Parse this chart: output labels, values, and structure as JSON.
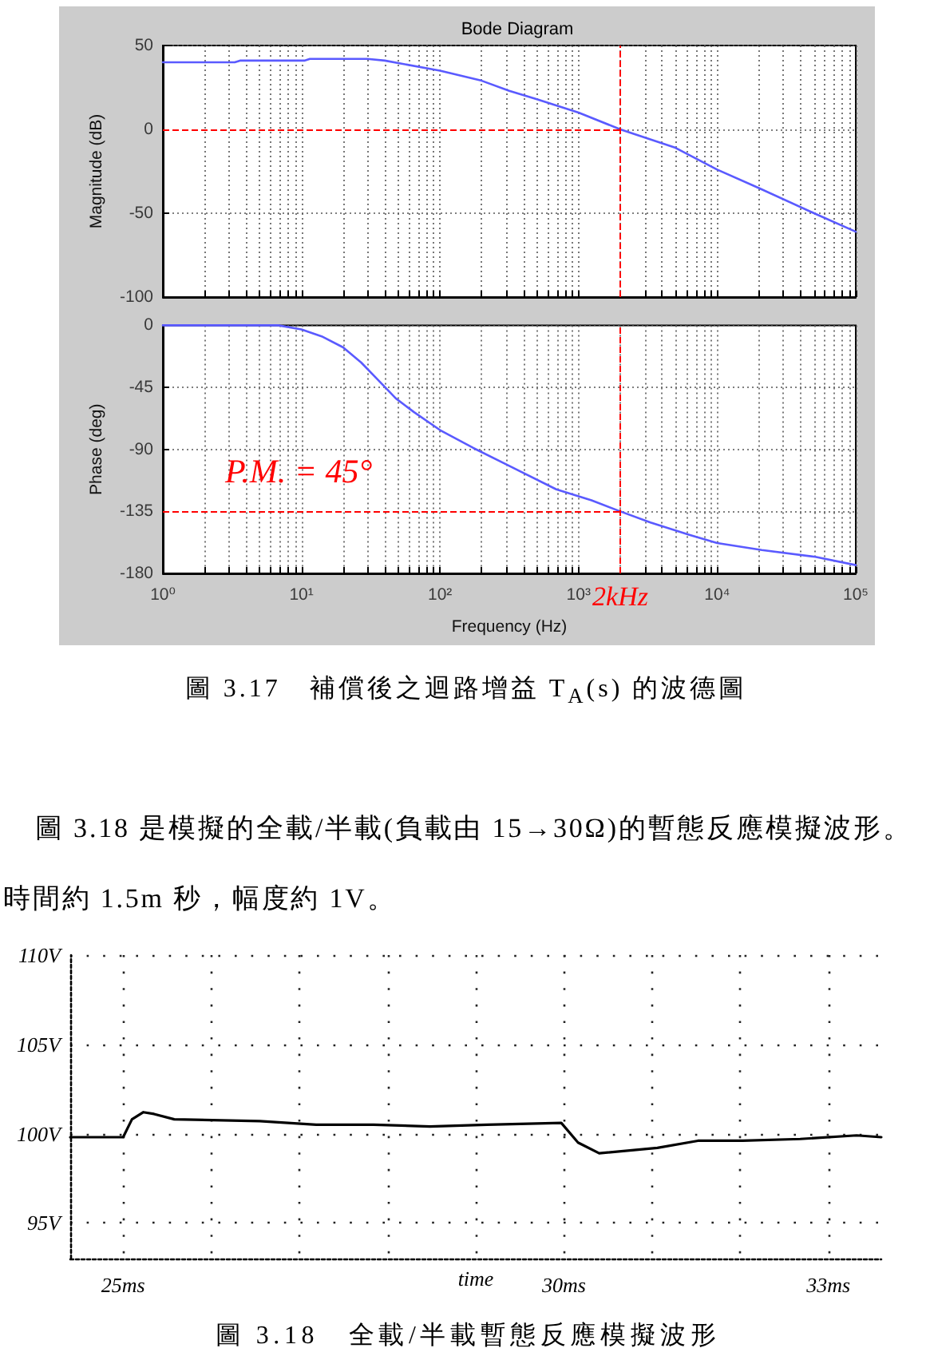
{
  "chart_data": [
    {
      "type": "line",
      "title": "Bode Diagram",
      "ylabel": "Magnitude (dB)",
      "x": [
        1,
        3.3,
        3.6,
        10.5,
        11.5,
        30,
        40,
        100,
        200,
        316,
        500,
        1000,
        2000,
        5000,
        10000,
        20000,
        50000,
        100000
      ],
      "values": [
        40,
        40,
        41,
        41,
        42,
        42,
        41,
        35,
        29,
        23,
        18,
        10,
        0,
        -11,
        -24,
        -35,
        -50,
        -61
      ],
      "color": "#5a5aff",
      "log": "x",
      "xlim": [
        1,
        100000
      ],
      "xticks": [
        {
          "value": 1,
          "label": null
        },
        {
          "value": 2,
          "label": null
        },
        {
          "value": 3,
          "label": null
        },
        {
          "value": 4,
          "label": null
        },
        {
          "value": 5,
          "label": null
        },
        {
          "value": 6,
          "label": null
        },
        {
          "value": 7,
          "label": null
        },
        {
          "value": 8,
          "label": null
        },
        {
          "value": 9,
          "label": null
        },
        {
          "value": 10,
          "label": null
        },
        {
          "value": 20,
          "label": null
        },
        {
          "value": 30,
          "label": null
        },
        {
          "value": 40,
          "label": null
        },
        {
          "value": 50,
          "label": null
        },
        {
          "value": 60,
          "label": null
        },
        {
          "value": 70,
          "label": null
        },
        {
          "value": 80,
          "label": null
        },
        {
          "value": 90,
          "label": null
        },
        {
          "value": 100,
          "label": null
        },
        {
          "value": 200,
          "label": null
        },
        {
          "value": 300,
          "label": null
        },
        {
          "value": 400,
          "label": null
        },
        {
          "value": 500,
          "label": null
        },
        {
          "value": 600,
          "label": null
        },
        {
          "value": 700,
          "label": null
        },
        {
          "value": 800,
          "label": null
        },
        {
          "value": 900,
          "label": null
        },
        {
          "value": 1000,
          "label": null
        },
        {
          "value": 2000,
          "label": null
        },
        {
          "value": 3000,
          "label": null
        },
        {
          "value": 4000,
          "label": null
        },
        {
          "value": 5000,
          "label": null
        },
        {
          "value": 6000,
          "label": null
        },
        {
          "value": 7000,
          "label": null
        },
        {
          "value": 8000,
          "label": null
        },
        {
          "value": 9000,
          "label": null
        },
        {
          "value": 10000,
          "label": null
        },
        {
          "value": 20000,
          "label": null
        },
        {
          "value": 30000,
          "label": null
        },
        {
          "value": 40000,
          "label": null
        },
        {
          "value": 50000,
          "label": null
        },
        {
          "value": 60000,
          "label": null
        },
        {
          "value": 70000,
          "label": null
        },
        {
          "value": 80000,
          "label": null
        },
        {
          "value": 90000,
          "label": null
        },
        {
          "value": 100000,
          "label": null
        }
      ],
      "ylim": [
        -100,
        50
      ],
      "yticks": [
        -100,
        -50,
        0,
        50
      ],
      "grid": true,
      "tick_labels": "y",
      "ref_lines": [
        {
          "axis": "y",
          "value": 0,
          "color": "#ff0000",
          "line_style": "dashed"
        },
        {
          "axis": "x",
          "value": 2000,
          "color": "#ff0000",
          "line_style": "dashed"
        }
      ]
    },
    {
      "type": "line",
      "xlabel": "Frequency (Hz)",
      "ylabel": "Phase (deg)",
      "x": [
        1,
        6.8,
        10,
        14,
        20,
        27,
        36,
        48,
        65,
        100,
        174,
        316,
        690,
        1240,
        2000,
        3300,
        6300,
        10000,
        21000,
        51000,
        100000
      ],
      "values": [
        0,
        0,
        -3,
        -8,
        -16,
        -27,
        -40,
        -53,
        -63,
        -76,
        -89,
        -102,
        -119,
        -127,
        -135,
        -143,
        -152,
        -158,
        -163,
        -168,
        -174
      ],
      "color": "#5a5aff",
      "log": "x",
      "xlim": [
        1,
        100000
      ],
      "xticks": [
        {
          "value": 1,
          "label": "10⁰"
        },
        {
          "value": 2,
          "label": null
        },
        {
          "value": 3,
          "label": null
        },
        {
          "value": 4,
          "label": null
        },
        {
          "value": 5,
          "label": null
        },
        {
          "value": 6,
          "label": null
        },
        {
          "value": 7,
          "label": null
        },
        {
          "value": 8,
          "label": null
        },
        {
          "value": 9,
          "label": null
        },
        {
          "value": 10,
          "label": "10¹"
        },
        {
          "value": 20,
          "label": null
        },
        {
          "value": 30,
          "label": null
        },
        {
          "value": 40,
          "label": null
        },
        {
          "value": 50,
          "label": null
        },
        {
          "value": 60,
          "label": null
        },
        {
          "value": 70,
          "label": null
        },
        {
          "value": 80,
          "label": null
        },
        {
          "value": 90,
          "label": null
        },
        {
          "value": 100,
          "label": "10²"
        },
        {
          "value": 200,
          "label": null
        },
        {
          "value": 300,
          "label": null
        },
        {
          "value": 400,
          "label": null
        },
        {
          "value": 500,
          "label": null
        },
        {
          "value": 600,
          "label": null
        },
        {
          "value": 700,
          "label": null
        },
        {
          "value": 800,
          "label": null
        },
        {
          "value": 900,
          "label": null
        },
        {
          "value": 1000,
          "label": "10³"
        },
        {
          "value": 2000,
          "label": null
        },
        {
          "value": 3000,
          "label": null
        },
        {
          "value": 4000,
          "label": null
        },
        {
          "value": 5000,
          "label": null
        },
        {
          "value": 6000,
          "label": null
        },
        {
          "value": 7000,
          "label": null
        },
        {
          "value": 8000,
          "label": null
        },
        {
          "value": 9000,
          "label": null
        },
        {
          "value": 10000,
          "label": "10⁴"
        },
        {
          "value": 20000,
          "label": null
        },
        {
          "value": 30000,
          "label": null
        },
        {
          "value": 40000,
          "label": null
        },
        {
          "value": 50000,
          "label": null
        },
        {
          "value": 60000,
          "label": null
        },
        {
          "value": 70000,
          "label": null
        },
        {
          "value": 80000,
          "label": null
        },
        {
          "value": 90000,
          "label": null
        },
        {
          "value": 100000,
          "label": "10⁵"
        }
      ],
      "ylim": [
        -180,
        0
      ],
      "yticks": [
        -180,
        -135,
        -90,
        -45,
        0
      ],
      "grid": true,
      "ref_lines": [
        {
          "axis": "y",
          "value": -135,
          "color": "#ff0000",
          "line_style": "dashed"
        },
        {
          "axis": "x",
          "value": 2000,
          "label": "2kHz",
          "color": "#ff0000",
          "line_style": "dashed"
        }
      ],
      "annotations": [
        "P.M. = 45°",
        "圖 3.17　補償後之迴路增益 T$_{A}$(s) 的波德圖"
      ]
    },
    {
      "type": "line",
      "xlabel": "time",
      "x": [
        24.4,
        25.0,
        25.1,
        25.23,
        25.35,
        25.58,
        26.55,
        27.19,
        27.84,
        28.48,
        29.13,
        29.97,
        30.16,
        30.4,
        31.06,
        31.52,
        32.03,
        32.68,
        33.32,
        33.6
      ],
      "values": [
        99.8,
        99.8,
        100.8,
        101.2,
        101.1,
        100.8,
        100.7,
        100.5,
        100.5,
        100.4,
        100.5,
        100.6,
        99.5,
        98.9,
        99.2,
        99.6,
        99.6,
        99.7,
        99.9,
        99.8
      ],
      "color": "#000000",
      "xlim": [
        24.4,
        33.6
      ],
      "xticks": [
        {
          "value": 25,
          "label": "25ms"
        },
        {
          "value": 26,
          "label": null
        },
        {
          "value": 27,
          "label": null
        },
        {
          "value": 28,
          "label": null
        },
        {
          "value": 29,
          "label": null
        },
        {
          "value": 30,
          "label": "30ms"
        },
        {
          "value": 31,
          "label": null
        },
        {
          "value": 32,
          "label": null
        },
        {
          "value": 33,
          "label": "33ms"
        }
      ],
      "ylim": [
        93,
        110
      ],
      "yticks": [
        {
          "value": 95,
          "label": "95V"
        },
        {
          "value": 100,
          "label": "100V"
        },
        {
          "value": 105,
          "label": "105V"
        },
        {
          "value": 110,
          "label": "110V"
        }
      ],
      "grid": true,
      "annotations": [
        "圖 3.18 是模擬的全載/半載(負載由 15→30Ω)的暫態反應模擬波形。",
        "時間約 1.5m 秒，幅度約 1V。",
        "圖 3.18　全載/半載暫態反應模擬波形"
      ]
    }
  ]
}
